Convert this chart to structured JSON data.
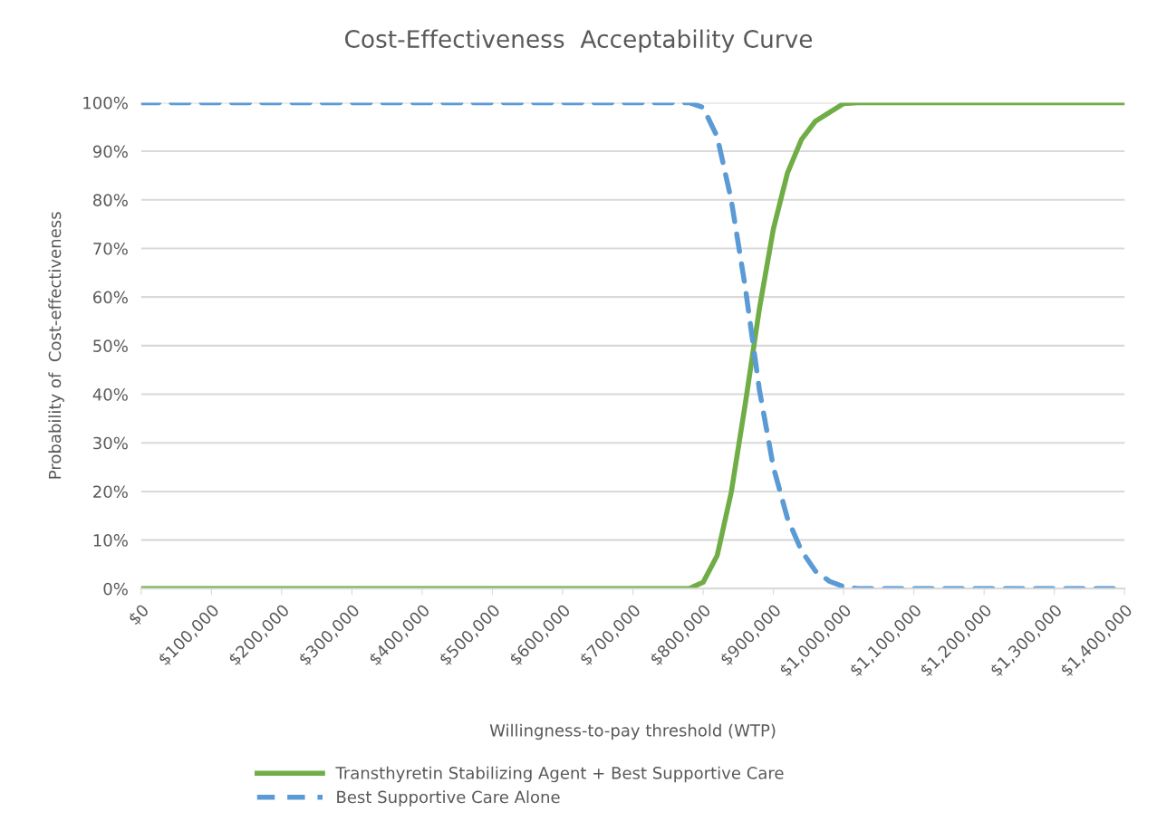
{
  "chart_data": {
    "type": "line",
    "title": "Cost-Effectiveness  Acceptability Curve",
    "xlabel": "Willingness-to-pay threshold (WTP)",
    "ylabel": "Probability of  Cost-effectiveness",
    "x": [
      0,
      20000,
      40000,
      60000,
      80000,
      100000,
      120000,
      140000,
      160000,
      180000,
      200000,
      220000,
      240000,
      260000,
      280000,
      300000,
      320000,
      340000,
      360000,
      380000,
      400000,
      420000,
      440000,
      460000,
      480000,
      500000,
      520000,
      540000,
      560000,
      580000,
      600000,
      620000,
      640000,
      660000,
      680000,
      700000,
      720000,
      740000,
      760000,
      780000,
      800000,
      820000,
      840000,
      860000,
      880000,
      900000,
      920000,
      940000,
      960000,
      980000,
      1000000,
      1020000,
      1040000,
      1060000,
      1080000,
      1100000,
      1120000,
      1140000,
      1160000,
      1180000,
      1200000,
      1220000,
      1240000,
      1260000,
      1280000,
      1300000,
      1320000,
      1340000,
      1360000,
      1380000,
      1400000
    ],
    "series": [
      {
        "name": "Transthyretin Stabilizing Agent + Best Supportive Care",
        "color": "#70ad47",
        "line_style": "solid",
        "values": [
          0,
          0,
          0,
          0,
          0,
          0,
          0,
          0,
          0,
          0,
          0,
          0,
          0,
          0,
          0,
          0,
          0,
          0,
          0,
          0,
          0,
          0,
          0,
          0,
          0,
          0,
          0,
          0,
          0,
          0,
          0,
          0,
          0,
          0,
          0,
          0,
          0,
          0,
          0,
          0,
          1.3,
          6.8,
          19.8,
          38,
          57.5,
          74,
          85.5,
          92.4,
          96.2,
          98,
          99.8,
          100,
          100,
          100,
          100,
          100,
          100,
          100,
          100,
          100,
          100,
          100,
          100,
          100,
          100,
          100,
          100,
          100,
          100,
          100,
          100
        ]
      },
      {
        "name": "Best Supportive Care Alone",
        "color": "#5b9bd5",
        "line_style": "dashed",
        "values": [
          100,
          100,
          100,
          100,
          100,
          100,
          100,
          100,
          100,
          100,
          100,
          100,
          100,
          100,
          100,
          100,
          100,
          100,
          100,
          100,
          100,
          100,
          100,
          100,
          100,
          100,
          100,
          100,
          100,
          100,
          100,
          100,
          100,
          100,
          100,
          100,
          100,
          100,
          100,
          100,
          99,
          93,
          80,
          62,
          41,
          25,
          14.5,
          7.8,
          3.6,
          1.5,
          0.4,
          0,
          0,
          0,
          0,
          0,
          0,
          0,
          0,
          0,
          0,
          0,
          0,
          0,
          0,
          0,
          0,
          0,
          0,
          0,
          0
        ]
      }
    ],
    "xlim": [
      0,
      1400000
    ],
    "xticks": [
      {
        "value": 0,
        "label": "$0"
      },
      {
        "value": 100000,
        "label": "$100,000"
      },
      {
        "value": 200000,
        "label": "$200,000"
      },
      {
        "value": 300000,
        "label": "$300,000"
      },
      {
        "value": 400000,
        "label": "$400,000"
      },
      {
        "value": 500000,
        "label": "$500,000"
      },
      {
        "value": 600000,
        "label": "$600,000"
      },
      {
        "value": 700000,
        "label": "$700,000"
      },
      {
        "value": 800000,
        "label": "$800,000"
      },
      {
        "value": 900000,
        "label": "$900,000"
      },
      {
        "value": 1000000,
        "label": "$1,000,000"
      },
      {
        "value": 1100000,
        "label": "$1,100,000"
      },
      {
        "value": 1200000,
        "label": "$1,200,000"
      },
      {
        "value": 1300000,
        "label": "$1,300,000"
      },
      {
        "value": 1400000,
        "label": "$1,400,000"
      }
    ],
    "ylim": [
      0,
      100
    ],
    "yticks": [
      {
        "value": 0,
        "label": "0%"
      },
      {
        "value": 10,
        "label": "10%"
      },
      {
        "value": 20,
        "label": "20%"
      },
      {
        "value": 30,
        "label": "30%"
      },
      {
        "value": 40,
        "label": "40%"
      },
      {
        "value": 50,
        "label": "50%"
      },
      {
        "value": 60,
        "label": "60%"
      },
      {
        "value": 70,
        "label": "70%"
      },
      {
        "value": 80,
        "label": "80%"
      },
      {
        "value": 90,
        "label": "90%"
      },
      {
        "value": 100,
        "label": "100%"
      }
    ],
    "grid": "y",
    "legend": "bottom",
    "marker": "none"
  }
}
